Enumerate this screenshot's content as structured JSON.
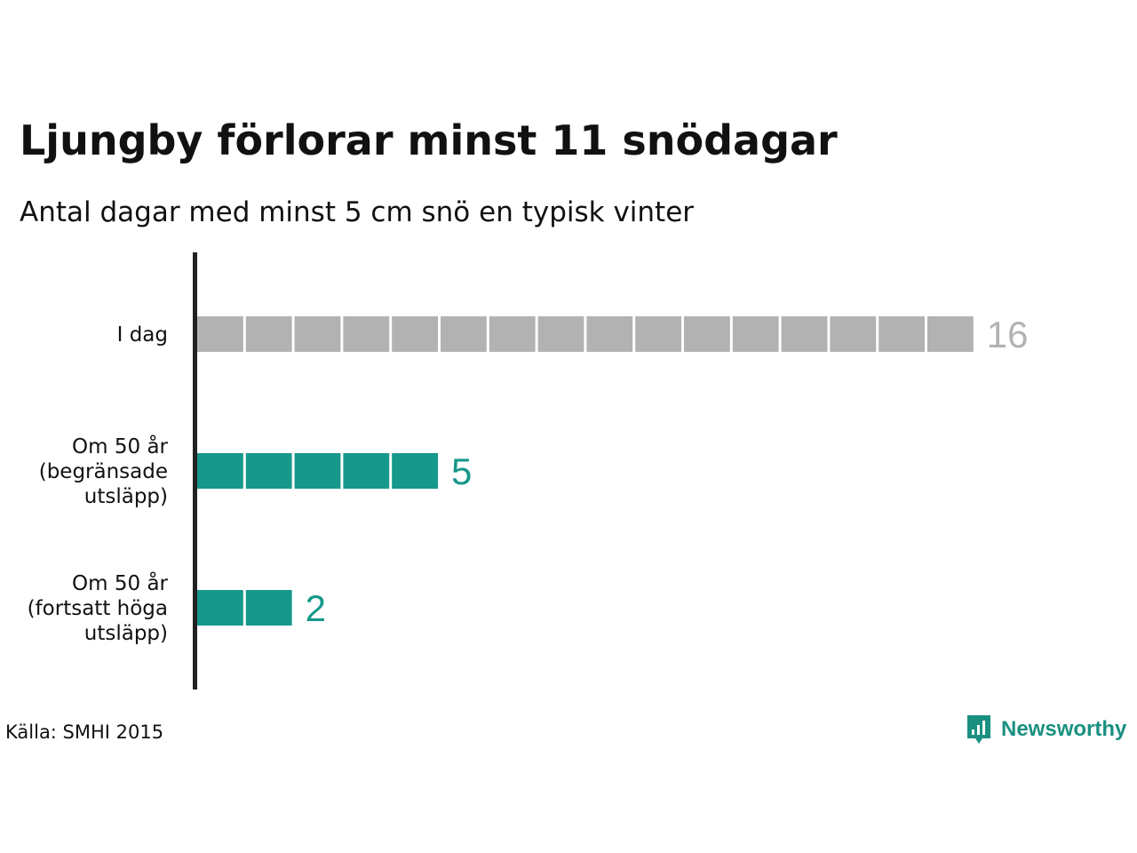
{
  "header": {
    "title": "Ljungby förlorar minst 11 snödagar",
    "subtitle": "Antal dagar med minst 5 cm snö en typisk vinter"
  },
  "chart_data": {
    "type": "bar",
    "orientation": "horizontal",
    "unit_squares": true,
    "categories": [
      [
        "I dag"
      ],
      [
        "Om 50 år",
        "(begränsade",
        "utsläpp)"
      ],
      [
        "Om 50 år",
        "(fortsatt höga",
        "utsläpp)"
      ]
    ],
    "values": [
      16,
      5,
      2
    ],
    "value_labels": [
      "16",
      "5",
      "2"
    ],
    "colors": [
      "#b2b2b2",
      "#16988a",
      "#16988a"
    ],
    "grid": false,
    "legend": "none"
  },
  "footer": {
    "source": "Källa: SMHI 2015",
    "brand": "Newsworthy",
    "brand_color": "#1a9080",
    "brand_icon": "bar-chart-speech-bubble-icon"
  }
}
